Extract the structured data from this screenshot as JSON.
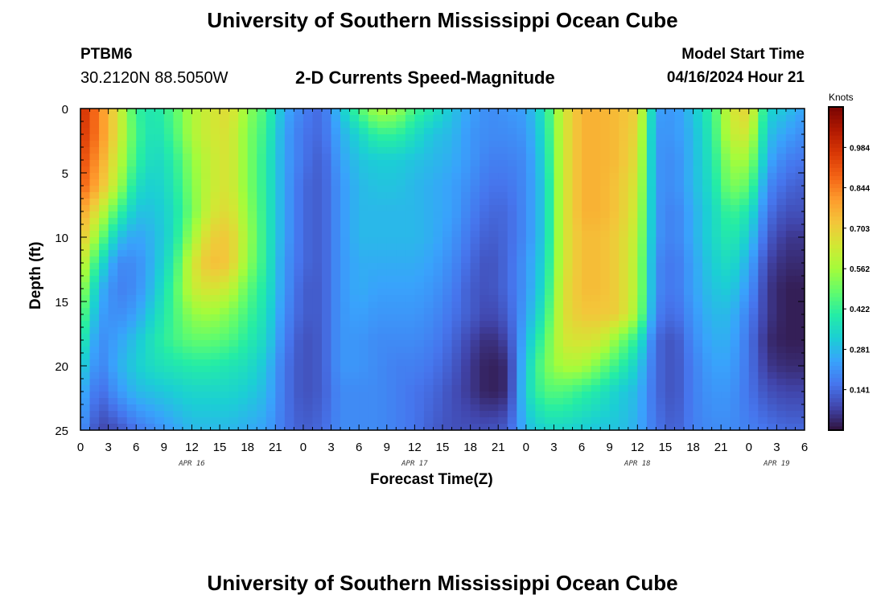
{
  "header": {
    "title": "University of Southern Mississippi Ocean Cube",
    "station": "PTBM6",
    "coordinates": "30.2120N  88.5050W",
    "subtitle": "2-D Currents Speed-Magnitude",
    "model_start_label": "Model Start Time",
    "model_start_value": "04/16/2024 Hour 21"
  },
  "footer": {
    "title": "University of Southern Mississippi Ocean Cube"
  },
  "chart_data": {
    "type": "heatmap",
    "title": "2-D Currents Speed-Magnitude",
    "xlabel": "Forecast Time(Z)",
    "ylabel": "Depth (ft)",
    "x_unit": "hours since Apr 16 00Z",
    "xlim": [
      0,
      78
    ],
    "ylim": [
      25,
      0
    ],
    "x_ticks": [
      0,
      3,
      6,
      9,
      12,
      15,
      18,
      21,
      24,
      27,
      30,
      33,
      36,
      39,
      42,
      45,
      48,
      51,
      54,
      57,
      60,
      63,
      66,
      69,
      72,
      75,
      78
    ],
    "x_tick_labels": [
      "0",
      "3",
      "6",
      "9",
      "12",
      "15",
      "18",
      "21",
      "0",
      "3",
      "6",
      "9",
      "12",
      "15",
      "18",
      "21",
      "0",
      "3",
      "6",
      "9",
      "12",
      "15",
      "18",
      "21",
      "0",
      "3",
      "6"
    ],
    "y_ticks": [
      0,
      5,
      10,
      15,
      20,
      25
    ],
    "y_tick_labels": [
      "0",
      "5",
      "10",
      "15",
      "20",
      "25"
    ],
    "day_labels": [
      {
        "text": "APR 16",
        "x": 12
      },
      {
        "text": "APR 17",
        "x": 36
      },
      {
        "text": "APR 18",
        "x": 60
      },
      {
        "text": "APR 19",
        "x": 75
      }
    ],
    "colorbar": {
      "label": "Knots",
      "min": 0.0,
      "max": 1.125,
      "ticks": [
        0.141,
        0.281,
        0.422,
        0.562,
        0.703,
        0.844,
        0.984
      ],
      "tick_labels": [
        "0.141",
        "0.281",
        "0.422",
        "0.562",
        "0.703",
        "0.844",
        "0.984"
      ],
      "colors": [
        "#30123b",
        "#4145ab",
        "#4675ed",
        "#39a2fc",
        "#1bcfd4",
        "#24eca6",
        "#61fc6c",
        "#a4fc3b",
        "#d1e834",
        "#f3c63a",
        "#fe9b2d",
        "#f36315",
        "#d93806",
        "#b11901",
        "#7a0402"
      ]
    },
    "grid": {
      "x_hours": [
        0,
        2,
        4,
        6,
        8,
        10,
        12,
        14,
        16,
        18,
        20,
        22,
        24,
        26,
        28,
        30,
        32,
        34,
        36,
        38,
        40,
        42,
        44,
        46,
        48,
        50,
        52,
        54,
        56,
        58,
        60,
        62,
        64,
        66,
        68,
        70,
        72,
        74,
        76,
        78
      ],
      "depth_ft": [
        0,
        2,
        4,
        6,
        8,
        10,
        12,
        14,
        16,
        18,
        20,
        22,
        25
      ],
      "speed_knots": [
        [
          1.0,
          0.84,
          0.66,
          0.42,
          0.38,
          0.46,
          0.58,
          0.64,
          0.68,
          0.54,
          0.44,
          0.26,
          0.18,
          0.14,
          0.3,
          0.46,
          0.58,
          0.56,
          0.44,
          0.38,
          0.3,
          0.24,
          0.2,
          0.22,
          0.24,
          0.38,
          0.64,
          0.76,
          0.76,
          0.74,
          0.7,
          0.24,
          0.22,
          0.3,
          0.42,
          0.64,
          0.7,
          0.34,
          0.3,
          0.24
        ],
        [
          0.98,
          0.84,
          0.66,
          0.44,
          0.36,
          0.44,
          0.58,
          0.64,
          0.66,
          0.52,
          0.42,
          0.24,
          0.16,
          0.14,
          0.26,
          0.34,
          0.42,
          0.42,
          0.36,
          0.3,
          0.28,
          0.22,
          0.2,
          0.2,
          0.22,
          0.36,
          0.64,
          0.76,
          0.76,
          0.74,
          0.68,
          0.22,
          0.22,
          0.28,
          0.4,
          0.62,
          0.64,
          0.3,
          0.24,
          0.2
        ],
        [
          0.94,
          0.8,
          0.62,
          0.42,
          0.34,
          0.4,
          0.54,
          0.62,
          0.66,
          0.52,
          0.4,
          0.24,
          0.16,
          0.12,
          0.24,
          0.3,
          0.32,
          0.32,
          0.3,
          0.28,
          0.26,
          0.22,
          0.18,
          0.18,
          0.2,
          0.34,
          0.64,
          0.76,
          0.76,
          0.74,
          0.66,
          0.22,
          0.2,
          0.28,
          0.38,
          0.56,
          0.56,
          0.26,
          0.18,
          0.16
        ],
        [
          0.9,
          0.76,
          0.58,
          0.36,
          0.32,
          0.38,
          0.52,
          0.62,
          0.66,
          0.52,
          0.4,
          0.24,
          0.14,
          0.12,
          0.22,
          0.28,
          0.3,
          0.3,
          0.28,
          0.26,
          0.24,
          0.2,
          0.16,
          0.16,
          0.2,
          0.32,
          0.64,
          0.76,
          0.76,
          0.72,
          0.64,
          0.22,
          0.2,
          0.28,
          0.36,
          0.52,
          0.48,
          0.2,
          0.14,
          0.12
        ],
        [
          0.8,
          0.64,
          0.44,
          0.3,
          0.3,
          0.36,
          0.5,
          0.64,
          0.68,
          0.54,
          0.4,
          0.24,
          0.14,
          0.12,
          0.22,
          0.28,
          0.28,
          0.28,
          0.28,
          0.26,
          0.24,
          0.18,
          0.14,
          0.14,
          0.2,
          0.32,
          0.64,
          0.76,
          0.76,
          0.72,
          0.62,
          0.22,
          0.18,
          0.26,
          0.34,
          0.44,
          0.38,
          0.16,
          0.1,
          0.1
        ],
        [
          0.74,
          0.52,
          0.3,
          0.24,
          0.28,
          0.36,
          0.56,
          0.7,
          0.72,
          0.56,
          0.4,
          0.24,
          0.14,
          0.12,
          0.22,
          0.28,
          0.28,
          0.28,
          0.28,
          0.26,
          0.22,
          0.16,
          0.12,
          0.14,
          0.2,
          0.32,
          0.64,
          0.74,
          0.74,
          0.7,
          0.6,
          0.22,
          0.18,
          0.26,
          0.34,
          0.4,
          0.32,
          0.12,
          0.06,
          0.06
        ],
        [
          0.66,
          0.38,
          0.2,
          0.2,
          0.28,
          0.4,
          0.64,
          0.74,
          0.72,
          0.54,
          0.4,
          0.22,
          0.14,
          0.12,
          0.22,
          0.26,
          0.26,
          0.26,
          0.26,
          0.24,
          0.2,
          0.14,
          0.1,
          0.14,
          0.22,
          0.34,
          0.64,
          0.74,
          0.74,
          0.7,
          0.58,
          0.2,
          0.16,
          0.24,
          0.32,
          0.36,
          0.26,
          0.08,
          0.04,
          0.04
        ],
        [
          0.58,
          0.28,
          0.18,
          0.2,
          0.3,
          0.44,
          0.62,
          0.66,
          0.62,
          0.48,
          0.38,
          0.22,
          0.12,
          0.12,
          0.22,
          0.26,
          0.24,
          0.24,
          0.24,
          0.22,
          0.18,
          0.12,
          0.1,
          0.14,
          0.22,
          0.36,
          0.66,
          0.74,
          0.74,
          0.7,
          0.58,
          0.2,
          0.16,
          0.24,
          0.3,
          0.32,
          0.22,
          0.06,
          0.02,
          0.02
        ],
        [
          0.5,
          0.24,
          0.2,
          0.24,
          0.34,
          0.44,
          0.54,
          0.56,
          0.52,
          0.44,
          0.36,
          0.2,
          0.12,
          0.12,
          0.22,
          0.24,
          0.22,
          0.22,
          0.22,
          0.2,
          0.16,
          0.12,
          0.08,
          0.12,
          0.24,
          0.4,
          0.66,
          0.72,
          0.72,
          0.7,
          0.56,
          0.18,
          0.14,
          0.22,
          0.28,
          0.28,
          0.18,
          0.06,
          0.02,
          0.02
        ],
        [
          0.42,
          0.2,
          0.24,
          0.3,
          0.38,
          0.44,
          0.48,
          0.48,
          0.46,
          0.4,
          0.34,
          0.18,
          0.1,
          0.12,
          0.22,
          0.22,
          0.2,
          0.2,
          0.2,
          0.18,
          0.14,
          0.08,
          0.04,
          0.08,
          0.28,
          0.46,
          0.64,
          0.66,
          0.64,
          0.52,
          0.4,
          0.14,
          0.1,
          0.2,
          0.26,
          0.26,
          0.16,
          0.04,
          0.02,
          0.02
        ],
        [
          0.34,
          0.18,
          0.26,
          0.32,
          0.36,
          0.38,
          0.4,
          0.4,
          0.38,
          0.36,
          0.3,
          0.16,
          0.1,
          0.12,
          0.22,
          0.22,
          0.2,
          0.18,
          0.18,
          0.16,
          0.12,
          0.06,
          0.02,
          0.04,
          0.32,
          0.5,
          0.58,
          0.58,
          0.5,
          0.42,
          0.32,
          0.14,
          0.1,
          0.18,
          0.24,
          0.24,
          0.16,
          0.06,
          0.04,
          0.04
        ],
        [
          0.28,
          0.14,
          0.22,
          0.28,
          0.3,
          0.32,
          0.34,
          0.34,
          0.34,
          0.32,
          0.28,
          0.16,
          0.1,
          0.12,
          0.2,
          0.2,
          0.2,
          0.18,
          0.16,
          0.14,
          0.1,
          0.06,
          0.02,
          0.04,
          0.34,
          0.46,
          0.46,
          0.42,
          0.38,
          0.32,
          0.28,
          0.14,
          0.1,
          0.18,
          0.22,
          0.22,
          0.16,
          0.1,
          0.08,
          0.08
        ],
        [
          0.22,
          0.08,
          0.1,
          0.16,
          0.2,
          0.24,
          0.28,
          0.28,
          0.28,
          0.26,
          0.24,
          0.16,
          0.12,
          0.14,
          0.2,
          0.2,
          0.2,
          0.18,
          0.16,
          0.12,
          0.1,
          0.1,
          0.1,
          0.12,
          0.28,
          0.34,
          0.34,
          0.32,
          0.3,
          0.3,
          0.26,
          0.16,
          0.12,
          0.18,
          0.2,
          0.2,
          0.18,
          0.16,
          0.14,
          0.14
        ]
      ]
    }
  }
}
